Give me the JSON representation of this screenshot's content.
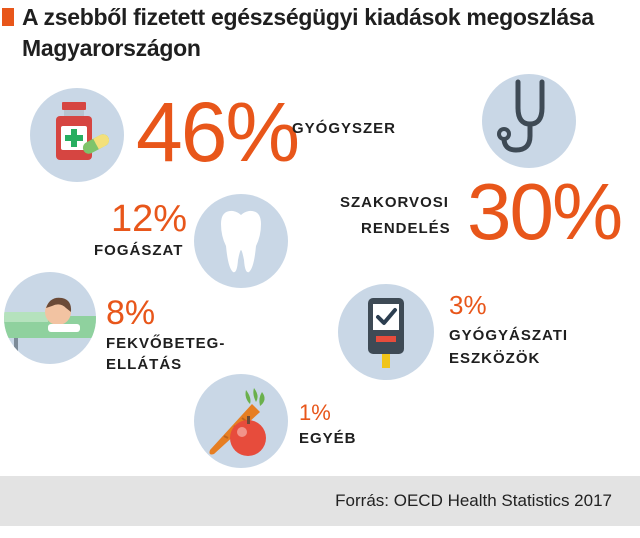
{
  "title": "A zsebből fizetett egészségügyi kiadások megoszlása Magyarországon",
  "source": "Forrás: OECD Health Statistics 2017",
  "colors": {
    "accent": "#e8561a",
    "icon_circle": "#c9d7e6",
    "footer": "#e3e3e3"
  },
  "chart_data": {
    "type": "pictogram",
    "title": "A zsebből fizetett egészségügyi kiadások megoszlása Magyarországon",
    "unit": "%",
    "items": [
      {
        "label": "GYÓGYSZER",
        "value": 46,
        "value_label": "46%",
        "icon": "medicine-icon"
      },
      {
        "label": "SZAKORVOSI RENDELÉS",
        "label_lines": [
          "SZAKORVOSI",
          "RENDELÉS"
        ],
        "value": 30,
        "value_label": "30%",
        "icon": "stethoscope-icon"
      },
      {
        "label": "FOGÁSZAT",
        "value": 12,
        "value_label": "12%",
        "icon": "tooth-icon"
      },
      {
        "label": "FEKVŐBETEG-ELLÁTÁS",
        "label_lines": [
          "FEKVŐBETEG-",
          "ELLÁTÁS"
        ],
        "value": 8,
        "value_label": "8%",
        "icon": "patient-bed-icon"
      },
      {
        "label": "GYÓGYÁSZATI ESZKÖZÖK",
        "label_lines": [
          "GYÓGYÁSZATI",
          "ESZKÖZÖK"
        ],
        "value": 3,
        "value_label": "3%",
        "icon": "glucometer-icon"
      },
      {
        "label": "EGYÉB",
        "value": 1,
        "value_label": "1%",
        "icon": "fruit-vegetable-icon"
      }
    ]
  }
}
